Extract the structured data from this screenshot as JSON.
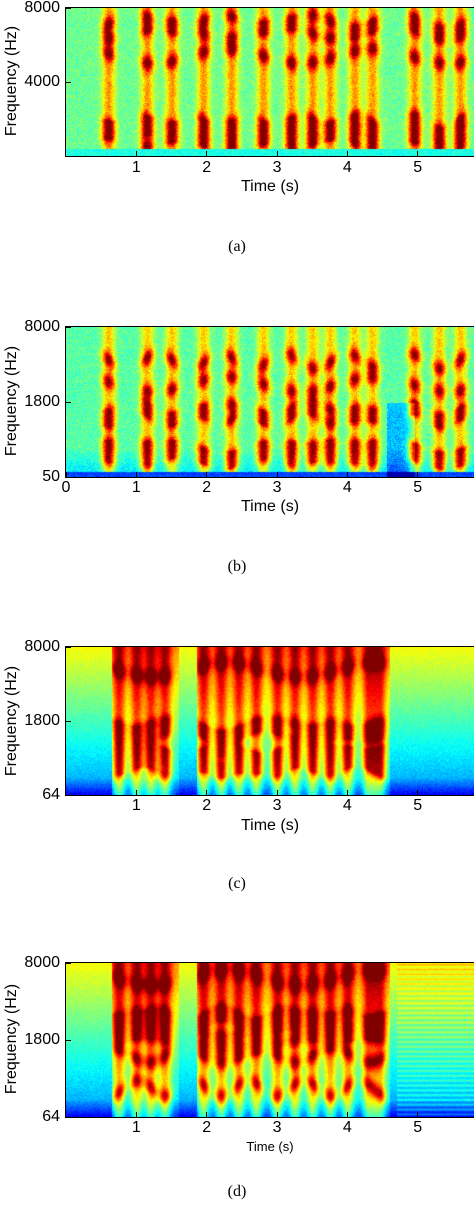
{
  "chart_data": [
    {
      "type": "heatmap",
      "caption": "(a)",
      "xlabel": "Time (s)",
      "ylabel": "Frequency (Hz)",
      "xlim": [
        0,
        5.8
      ],
      "x_ticks": [
        1,
        2,
        3,
        4,
        5
      ],
      "y_ticks": [
        4000,
        8000
      ],
      "y_scale": "linear",
      "y_range_hz": [
        0,
        8000
      ],
      "colormap": "jet",
      "content": "spectrogram",
      "event_times_s": [
        0.6,
        1.15,
        1.5,
        1.95,
        2.35,
        2.8,
        3.2,
        3.5,
        3.75,
        4.1,
        4.35,
        4.95,
        5.3,
        5.6
      ]
    },
    {
      "type": "heatmap",
      "caption": "(b)",
      "xlabel": "Time (s)",
      "ylabel": "Frequency (Hz)",
      "xlim": [
        0,
        5.8
      ],
      "x_ticks": [
        0,
        1,
        2,
        3,
        4,
        5
      ],
      "y_ticks": [
        50,
        1800,
        8000
      ],
      "y_scale": "log",
      "colormap": "jet",
      "content": "spectrogram",
      "event_times_s": [
        0.6,
        1.15,
        1.5,
        1.95,
        2.35,
        2.8,
        3.2,
        3.5,
        3.75,
        4.1,
        4.35,
        4.95,
        5.3,
        5.6
      ]
    },
    {
      "type": "heatmap",
      "caption": "(c)",
      "xlabel": "Time (s)",
      "ylabel": "Frequency (Hz)",
      "xlim": [
        0,
        5.8
      ],
      "x_ticks": [
        1,
        2,
        3,
        4,
        5
      ],
      "y_ticks": [
        64,
        1800,
        8000
      ],
      "y_scale": "log",
      "colormap": "jet",
      "content": "spectrogram",
      "event_times_s": [
        0.75,
        1.0,
        1.2,
        1.4,
        1.95,
        2.2,
        2.45,
        2.7,
        3.0,
        3.25,
        3.5,
        3.75,
        4.0,
        4.3,
        4.45
      ]
    },
    {
      "type": "heatmap",
      "caption": "(d)",
      "xlabel": "Time (s)",
      "ylabel": "Frequency (Hz)",
      "xlim": [
        0,
        5.8
      ],
      "x_ticks": [
        1,
        2,
        3,
        4,
        5
      ],
      "y_ticks": [
        64,
        1800,
        8000
      ],
      "y_scale": "log",
      "colormap": "jet",
      "content": "spectrogram",
      "event_times_s": [
        0.75,
        1.0,
        1.2,
        1.4,
        1.95,
        2.2,
        2.45,
        2.7,
        3.0,
        3.25,
        3.5,
        3.75,
        4.0,
        4.3,
        4.45
      ]
    }
  ]
}
